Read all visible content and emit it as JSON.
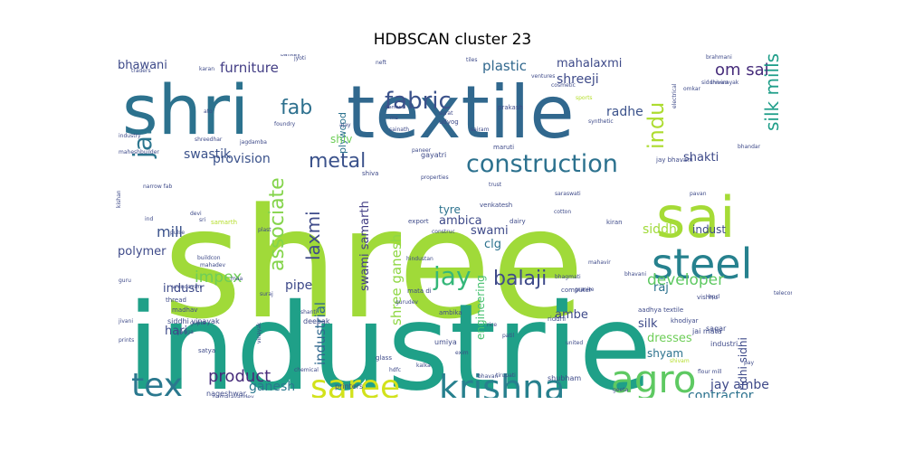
{
  "chart_data": {
    "type": "wordcloud",
    "title": "HDBSCAN cluster 23",
    "words": [
      {
        "text": "shree",
        "weight": 1.0,
        "color": "#a0da39"
      },
      {
        "text": "industrie",
        "weight": 0.92,
        "color": "#1fa088"
      },
      {
        "text": "shri",
        "weight": 0.62,
        "color": "#2c728e"
      },
      {
        "text": "textile",
        "weight": 0.58,
        "color": "#31688e"
      },
      {
        "text": "sai",
        "weight": 0.5,
        "color": "#a5db36"
      },
      {
        "text": "steel",
        "weight": 0.4,
        "color": "#26818e"
      },
      {
        "text": "agro",
        "weight": 0.36,
        "color": "#5ec962"
      },
      {
        "text": "krishna",
        "weight": 0.34,
        "color": "#27808e"
      },
      {
        "text": "saree",
        "weight": 0.33,
        "color": "#d2e21b"
      },
      {
        "text": "tex",
        "weight": 0.33,
        "color": "#2a788e"
      },
      {
        "text": "construction",
        "weight": 0.26,
        "color": "#2c718e"
      },
      {
        "text": "jay",
        "weight": 0.26,
        "color": "#35b779"
      },
      {
        "text": "jai",
        "weight": 0.25,
        "color": "#2b758e"
      },
      {
        "text": "fabric",
        "weight": 0.24,
        "color": "#3b528b"
      },
      {
        "text": "indu",
        "weight": 0.22,
        "color": "#addc30"
      },
      {
        "text": "associate",
        "weight": 0.22,
        "color": "#84d44b"
      },
      {
        "text": "balaji",
        "weight": 0.21,
        "color": "#3e4a89"
      },
      {
        "text": "fab",
        "weight": 0.21,
        "color": "#2d708e"
      },
      {
        "text": "metal",
        "weight": 0.21,
        "color": "#3b528b"
      },
      {
        "text": "silk mills",
        "weight": 0.2,
        "color": "#1f9e89"
      },
      {
        "text": "laxmi",
        "weight": 0.19,
        "color": "#3e4a89"
      },
      {
        "text": "om sai",
        "weight": 0.17,
        "color": "#472d7b"
      },
      {
        "text": "product",
        "weight": 0.17,
        "color": "#472c7a"
      },
      {
        "text": "developer",
        "weight": 0.16,
        "color": "#5ec962"
      },
      {
        "text": "shree ganesh",
        "weight": 0.16,
        "color": "#8fd744"
      },
      {
        "text": "industrial",
        "weight": 0.15,
        "color": "#31688e"
      },
      {
        "text": "impex",
        "weight": 0.15,
        "color": "#6ece58"
      },
      {
        "text": "furniture",
        "weight": 0.15,
        "color": "#433e85"
      },
      {
        "text": "plastic",
        "weight": 0.15,
        "color": "#31688e"
      },
      {
        "text": "mill",
        "weight": 0.15,
        "color": "#3b528b"
      },
      {
        "text": "contractor",
        "weight": 0.14,
        "color": "#2c728e"
      },
      {
        "text": "jay ambe",
        "weight": 0.14,
        "color": "#3e4989"
      },
      {
        "text": "ganesh",
        "weight": 0.14,
        "color": "#2a788e"
      },
      {
        "text": "shreeji",
        "weight": 0.14,
        "color": "#3e4a89"
      },
      {
        "text": "swastik",
        "weight": 0.14,
        "color": "#3b528b"
      },
      {
        "text": "provision",
        "weight": 0.14,
        "color": "#3b528b"
      },
      {
        "text": "radhe",
        "weight": 0.14,
        "color": "#3b528b"
      },
      {
        "text": "pipe",
        "weight": 0.14,
        "color": "#3e4a89"
      },
      {
        "text": "bhawani",
        "weight": 0.13,
        "color": "#3e4a89"
      },
      {
        "text": "swami samarth",
        "weight": 0.13,
        "color": "#433e85"
      },
      {
        "text": "mahalaxmi",
        "weight": 0.13,
        "color": "#3e4a89"
      },
      {
        "text": "shakti",
        "weight": 0.13,
        "color": "#3e4a89"
      },
      {
        "text": "siddhi",
        "weight": 0.13,
        "color": "#a0da39"
      },
      {
        "text": "swami",
        "weight": 0.13,
        "color": "#3e4a89"
      },
      {
        "text": "ambica",
        "weight": 0.12,
        "color": "#3e4a89"
      },
      {
        "text": "tyre",
        "weight": 0.12,
        "color": "#2c728e"
      },
      {
        "text": "clg",
        "weight": 0.12,
        "color": "#2c728e"
      },
      {
        "text": "indust",
        "weight": 0.12,
        "color": "#3e4a89"
      },
      {
        "text": "raj",
        "weight": 0.12,
        "color": "#2c728e"
      },
      {
        "text": "polymer",
        "weight": 0.12,
        "color": "#3e4a89"
      },
      {
        "text": "hari",
        "weight": 0.12,
        "color": "#3e4a89"
      },
      {
        "text": "industr",
        "weight": 0.12,
        "color": "#3e4a89"
      },
      {
        "text": "silk",
        "weight": 0.12,
        "color": "#3e4a89"
      },
      {
        "text": "dresses",
        "weight": 0.12,
        "color": "#6ece58"
      },
      {
        "text": "shyam",
        "weight": 0.12,
        "color": "#2c728e"
      },
      {
        "text": "ambe",
        "weight": 0.12,
        "color": "#3e4a89"
      },
      {
        "text": "engineering",
        "weight": 0.11,
        "color": "#46c06f"
      },
      {
        "text": "ridhi sidhi",
        "weight": 0.11,
        "color": "#3e4a89"
      },
      {
        "text": "plywood",
        "weight": 0.11,
        "color": "#2c728e"
      },
      {
        "text": "shiv",
        "weight": 0.11,
        "color": "#6ece58"
      },
      {
        "text": "siddhi vinayak",
        "weight": 0.08,
        "color": "#3e4a89"
      },
      {
        "text": "nageshwar",
        "weight": 0.07,
        "color": "#3e4a89"
      },
      {
        "text": "gayatri",
        "weight": 0.07,
        "color": "#3e4a89"
      },
      {
        "text": "mahadev",
        "weight": 0.06,
        "color": "#3e4a89"
      },
      {
        "text": "jai mata",
        "weight": 0.07,
        "color": "#3e4a89"
      },
      {
        "text": "industri",
        "weight": 0.07,
        "color": "#3e4a89"
      },
      {
        "text": "sagar",
        "weight": 0.07,
        "color": "#3e4a89"
      },
      {
        "text": "deepak",
        "weight": 0.07,
        "color": "#3e4a89"
      },
      {
        "text": "printers",
        "weight": 0.07,
        "color": "#3e4a89"
      },
      {
        "text": "umiya",
        "weight": 0.07,
        "color": "#3e4a89"
      },
      {
        "text": "shubham",
        "weight": 0.07,
        "color": "#3e4a89"
      },
      {
        "text": "aadhya textile",
        "weight": 0.06,
        "color": "#3e4a89"
      },
      {
        "text": "khodiyar",
        "weight": 0.06,
        "color": "#3e4a89"
      },
      {
        "text": "samarth",
        "weight": 0.06,
        "color": "#b5de2b"
      },
      {
        "text": "madhav",
        "weight": 0.06,
        "color": "#3e4a89"
      },
      {
        "text": "vishnu",
        "weight": 0.06,
        "color": "#3e4a89"
      },
      {
        "text": "satya",
        "weight": 0.06,
        "color": "#3e4a89"
      },
      {
        "text": "thread",
        "weight": 0.06,
        "color": "#3e4a89"
      },
      {
        "text": "glass",
        "weight": 0.06,
        "color": "#3e4a89"
      },
      {
        "text": "ambika",
        "weight": 0.06,
        "color": "#3e4a89"
      },
      {
        "text": "riddhi",
        "weight": 0.06,
        "color": "#3e4a89"
      },
      {
        "text": "maruti",
        "weight": 0.06,
        "color": "#3e4a89"
      },
      {
        "text": "shiva",
        "weight": 0.06,
        "color": "#3e4a89"
      },
      {
        "text": "udyog",
        "weight": 0.06,
        "color": "#3e4a89"
      },
      {
        "text": "prakash",
        "weight": 0.06,
        "color": "#3e4a89"
      },
      {
        "text": "bhandar",
        "weight": 0.06,
        "color": "#3e4a89"
      },
      {
        "text": "jay bhavani",
        "weight": 0.06,
        "color": "#3e4a89"
      },
      {
        "text": "kiran",
        "weight": 0.05,
        "color": "#3e4a89"
      },
      {
        "text": "dairy",
        "weight": 0.05,
        "color": "#3e4a89"
      },
      {
        "text": "venkatesh",
        "weight": 0.05,
        "color": "#3e4a89"
      },
      {
        "text": "export",
        "weight": 0.05,
        "color": "#3e4a89"
      },
      {
        "text": "bhagmati",
        "weight": 0.05,
        "color": "#3e4a89"
      },
      {
        "text": "bhavani",
        "weight": 0.05,
        "color": "#3e4a89"
      },
      {
        "text": "gurudev",
        "weight": 0.05,
        "color": "#3e4a89"
      },
      {
        "text": "mata di",
        "weight": 0.05,
        "color": "#3e4a89"
      },
      {
        "text": "granite",
        "weight": 0.05,
        "color": "#3e4a89"
      },
      {
        "text": "computer",
        "weight": 0.05,
        "color": "#3e4a89"
      },
      {
        "text": "vrundavan",
        "weight": 0.05,
        "color": "#3e4a89"
      },
      {
        "text": "maa",
        "weight": 0.05,
        "color": "#3e4a89"
      },
      {
        "text": "buildcon",
        "weight": 0.05,
        "color": "#3e4a89"
      },
      {
        "text": "devi",
        "weight": 0.05,
        "color": "#3e4a89"
      },
      {
        "text": "sri",
        "weight": 0.05,
        "color": "#3e4a89"
      },
      {
        "text": "ind",
        "weight": 0.05,
        "color": "#3e4a89"
      },
      {
        "text": "narrow fab",
        "weight": 0.05,
        "color": "#3e4a89"
      },
      {
        "text": "industry",
        "weight": 0.05,
        "color": "#3e4a89"
      },
      {
        "text": "jagdamba",
        "weight": 0.04,
        "color": "#3e4a89"
      },
      {
        "text": "sainath",
        "weight": 0.04,
        "color": "#3e4a89"
      },
      {
        "text": "sairam",
        "weight": 0.04,
        "color": "#3e4a89"
      },
      {
        "text": "ms",
        "weight": 0.04,
        "color": "#3e4a89"
      },
      {
        "text": "ajay",
        "weight": 0.04,
        "color": "#3e4a89"
      },
      {
        "text": "surat",
        "weight": 0.04,
        "color": "#3e4a89"
      },
      {
        "text": "synthetic",
        "weight": 0.04,
        "color": "#3e4a89"
      },
      {
        "text": "sports",
        "weight": 0.04,
        "color": "#b5de2b"
      },
      {
        "text": "electrical",
        "weight": 0.04,
        "color": "#3e4a89"
      },
      {
        "text": "siddhivinayak",
        "weight": 0.04,
        "color": "#3e4a89"
      },
      {
        "text": "brahmani",
        "weight": 0.04,
        "color": "#3e4a89"
      },
      {
        "text": "karan",
        "weight": 0.04,
        "color": "#3e4a89"
      },
      {
        "text": "neft",
        "weight": 0.04,
        "color": "#3e4a89"
      },
      {
        "text": "tiles",
        "weight": 0.04,
        "color": "#3e4a89"
      },
      {
        "text": "ventures",
        "weight": 0.04,
        "color": "#3e4a89"
      },
      {
        "text": "cosmetic",
        "weight": 0.04,
        "color": "#3e4a89"
      },
      {
        "text": "jyoti",
        "weight": 0.04,
        "color": "#3e4a89"
      },
      {
        "text": "bankey",
        "weight": 0.04,
        "color": "#3e4a89"
      },
      {
        "text": "traders",
        "weight": 0.04,
        "color": "#3e4a89"
      },
      {
        "text": "ato",
        "weight": 0.04,
        "color": "#3e4a89"
      },
      {
        "text": "foundry",
        "weight": 0.04,
        "color": "#3e4a89"
      },
      {
        "text": "maheshbuilder",
        "weight": 0.04,
        "color": "#3e4a89"
      },
      {
        "text": "kishan",
        "weight": 0.04,
        "color": "#3e4a89"
      },
      {
        "text": "pulse",
        "weight": 0.04,
        "color": "#3e4a89"
      },
      {
        "text": "plast",
        "weight": 0.04,
        "color": "#3e4a89"
      },
      {
        "text": "paneer",
        "weight": 0.04,
        "color": "#3e4a89"
      },
      {
        "text": "trust",
        "weight": 0.04,
        "color": "#3e4a89"
      },
      {
        "text": "cotton",
        "weight": 0.04,
        "color": "#3e4a89"
      },
      {
        "text": "construc",
        "weight": 0.04,
        "color": "#3e4a89"
      },
      {
        "text": "hindustan",
        "weight": 0.04,
        "color": "#3e4a89"
      },
      {
        "text": "mahavir",
        "weight": 0.04,
        "color": "#3e4a89"
      },
      {
        "text": "guru",
        "weight": 0.04,
        "color": "#3e4a89"
      },
      {
        "text": "prints",
        "weight": 0.04,
        "color": "#3e4a89"
      },
      {
        "text": "jivani",
        "weight": 0.04,
        "color": "#3e4a89"
      },
      {
        "text": "gupta",
        "weight": 0.04,
        "color": "#3e4a89"
      },
      {
        "text": "ganga",
        "weight": 0.04,
        "color": "#3e4a89"
      },
      {
        "text": "vinayak",
        "weight": 0.04,
        "color": "#3e4a89"
      },
      {
        "text": "chemical",
        "weight": 0.04,
        "color": "#3e4a89"
      },
      {
        "text": "hdfc",
        "weight": 0.04,
        "color": "#3e4a89"
      },
      {
        "text": "exim",
        "weight": 0.04,
        "color": "#3e4a89"
      },
      {
        "text": "bhavan",
        "weight": 0.04,
        "color": "#3e4a89"
      },
      {
        "text": "tirupati",
        "weight": 0.04,
        "color": "#3e4a89"
      },
      {
        "text": "flour mill",
        "weight": 0.04,
        "color": "#3e4a89"
      },
      {
        "text": "geeta",
        "weight": 0.04,
        "color": "#3e4a89"
      },
      {
        "text": "pay",
        "weight": 0.04,
        "color": "#3e4a89"
      },
      {
        "text": "narnarayandev",
        "weight": 0.04,
        "color": "#3e4a89"
      },
      {
        "text": "rice",
        "weight": 0.04,
        "color": "#3e4a89"
      },
      {
        "text": "patil",
        "weight": 0.04,
        "color": "#3e4a89"
      },
      {
        "text": "united",
        "weight": 0.04,
        "color": "#3e4a89"
      },
      {
        "text": "kalka",
        "weight": 0.04,
        "color": "#3e4a89"
      },
      {
        "text": "suraj",
        "weight": 0.04,
        "color": "#3e4a89"
      },
      {
        "text": "shanti",
        "weight": 0.04,
        "color": "#3e4a89"
      },
      {
        "text": "pavan",
        "weight": 0.04,
        "color": "#3e4a89"
      },
      {
        "text": "hpcl",
        "weight": 0.04,
        "color": "#3e4a89"
      },
      {
        "text": "telecom",
        "weight": 0.04,
        "color": "#3e4a89"
      },
      {
        "text": "shivam",
        "weight": 0.04,
        "color": "#b5de2b"
      },
      {
        "text": "saraswati",
        "weight": 0.04,
        "color": "#3e4a89"
      },
      {
        "text": "properties",
        "weight": 0.04,
        "color": "#3e4a89"
      },
      {
        "text": "shreedhar",
        "weight": 0.04,
        "color": "#3e4a89"
      },
      {
        "text": "diamond",
        "weight": 0.04,
        "color": "#3e4a89"
      },
      {
        "text": "omkar",
        "weight": 0.04,
        "color": "#3e4a89"
      },
      {
        "text": "shrinath",
        "weight": 0.04,
        "color": "#3e4a89"
      }
    ]
  }
}
